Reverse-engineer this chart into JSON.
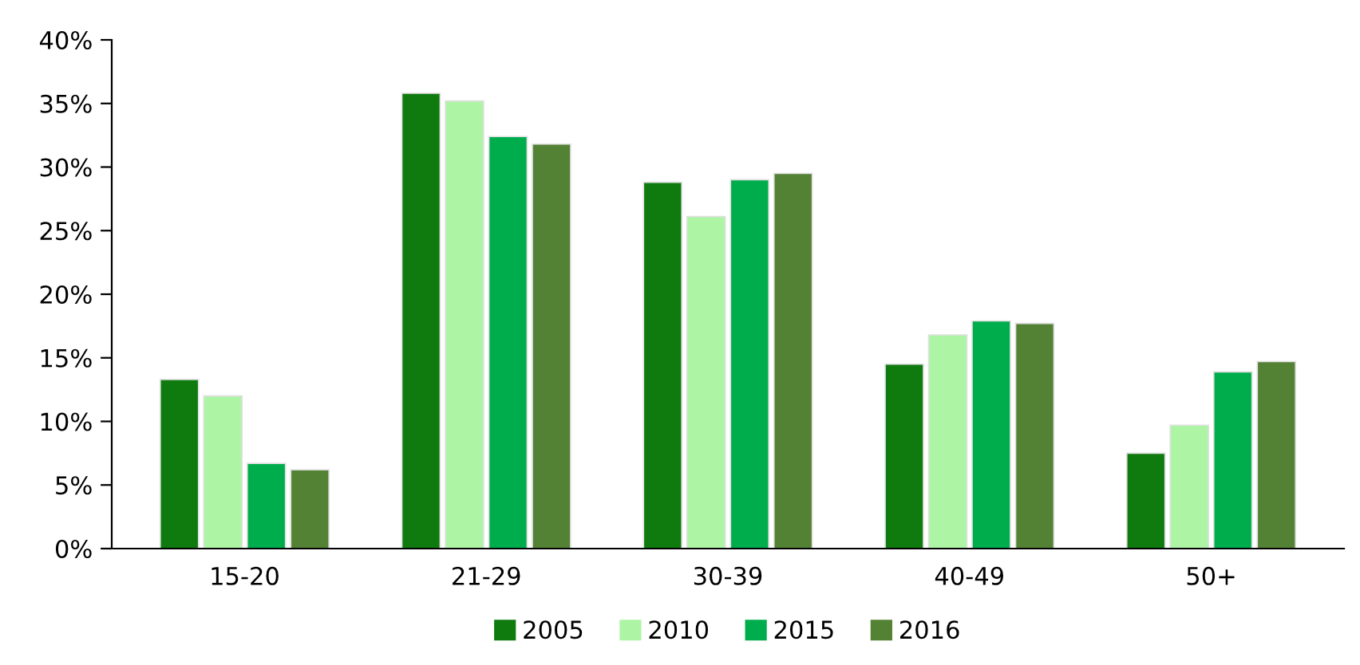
{
  "chart_data": {
    "type": "bar",
    "categories": [
      "15-20",
      "21-29",
      "30-39",
      "40-49",
      "50+"
    ],
    "series": [
      {
        "name": "2005",
        "color": "#0f7b0f",
        "values": [
          13.3,
          35.8,
          28.8,
          14.5,
          7.5
        ]
      },
      {
        "name": "2010",
        "color": "#adf5a5",
        "values": [
          12.0,
          35.2,
          26.1,
          16.8,
          9.7
        ]
      },
      {
        "name": "2015",
        "color": "#00ad4d",
        "values": [
          6.7,
          32.4,
          29.0,
          17.9,
          13.9
        ]
      },
      {
        "name": "2016",
        "color": "#548235",
        "values": [
          6.2,
          31.8,
          29.5,
          17.7,
          14.7
        ]
      }
    ],
    "ylim": [
      0,
      40
    ],
    "yticks": [
      {
        "value": 0,
        "label": "0%"
      },
      {
        "value": 5,
        "label": "5%"
      },
      {
        "value": 10,
        "label": "10%"
      },
      {
        "value": 15,
        "label": "15%"
      },
      {
        "value": 20,
        "label": "20%"
      },
      {
        "value": 25,
        "label": "25%"
      },
      {
        "value": 30,
        "label": "30%"
      },
      {
        "value": 35,
        "label": "35%"
      },
      {
        "value": 40,
        "label": "40%"
      }
    ],
    "grid": false,
    "legend": "bottom"
  }
}
